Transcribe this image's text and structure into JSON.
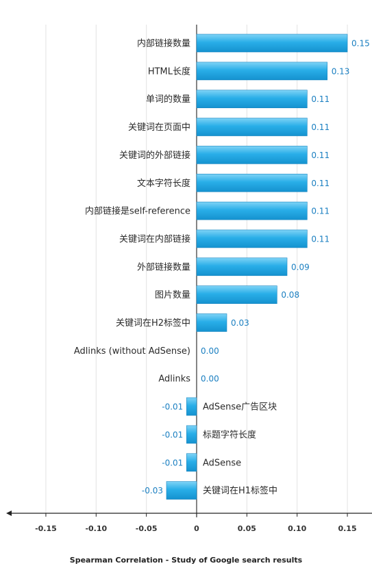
{
  "chart_data": {
    "type": "bar",
    "orientation": "horizontal",
    "title": "Spearman Correlation - Study of Google search results",
    "xlabel": "",
    "ylabel": "",
    "xlim": [
      -0.15,
      0.15
    ],
    "x_ticks": [
      "-0.15",
      "-0.10",
      "-0.05",
      "0",
      "0.05",
      "0.10",
      "0.15"
    ],
    "x_tick_values": [
      -0.15,
      -0.1,
      -0.05,
      0,
      0.05,
      0.1,
      0.15
    ],
    "grid": "vertical",
    "bar_color": "#29aee8",
    "value_label_color": "#1a7fc1",
    "categories": [
      "内部链接数量",
      "HTML长度",
      "单词的数量",
      "关键词在页面中",
      "关键词的外部链接",
      "文本字符长度",
      "内部链接是self-reference",
      "关键词在内部链接",
      "外部链接数量",
      "图片数量",
      "关键词在H2标签中",
      "Adlinks (without AdSense)",
      "Adlinks",
      "AdSense广告区块",
      "标题字符长度",
      "AdSense",
      "关键词在H1标签中"
    ],
    "values": [
      0.15,
      0.13,
      0.11,
      0.11,
      0.11,
      0.11,
      0.11,
      0.11,
      0.09,
      0.08,
      0.03,
      0.0,
      0.0,
      -0.01,
      -0.01,
      -0.01,
      -0.03
    ],
    "value_labels": [
      "0.15",
      "0.13",
      "0.11",
      "0.11",
      "0.11",
      "0.11",
      "0.11",
      "0.11",
      "0.09",
      "0.08",
      "0.03",
      "0.00",
      "0.00",
      "-0.01",
      "-0.01",
      "-0.01",
      "-0.03"
    ]
  }
}
